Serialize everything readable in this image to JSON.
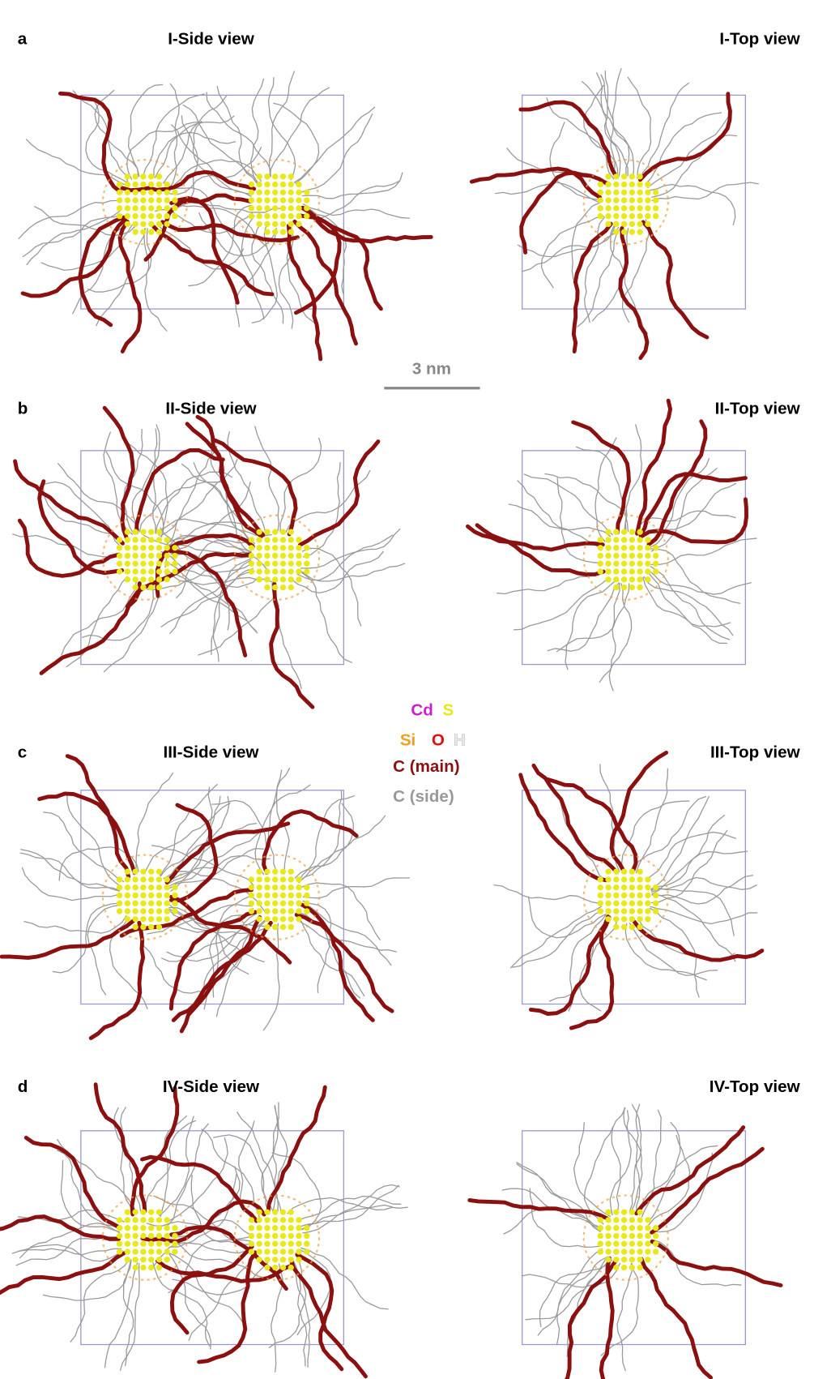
{
  "panels": [
    {
      "label": "a",
      "side_title": "I-Side view",
      "top_title": "I-Top view"
    },
    {
      "label": "b",
      "side_title": "II-Side view",
      "top_title": "II-Top view"
    },
    {
      "label": "c",
      "side_title": "III-Side view",
      "top_title": "III-Top view"
    },
    {
      "label": "d",
      "side_title": "IV-Side view",
      "top_title": "IV-Top view"
    }
  ],
  "scale_bar": {
    "label": "3 nm"
  },
  "legend": {
    "rows": [
      [
        {
          "text": "Cd",
          "color": "#cc1fcc"
        },
        {
          "text": "S",
          "color": "#e8e81a"
        }
      ],
      [
        {
          "text": "Si",
          "color": "#f0a020"
        },
        {
          "text": "O",
          "color": "#e01010"
        },
        {
          "text": "H",
          "color": "#e8e8e8"
        }
      ],
      [
        {
          "text": "C (main)",
          "color": "#8b1010"
        }
      ],
      [
        {
          "text": "C (side)",
          "color": "#999999"
        }
      ]
    ]
  }
}
